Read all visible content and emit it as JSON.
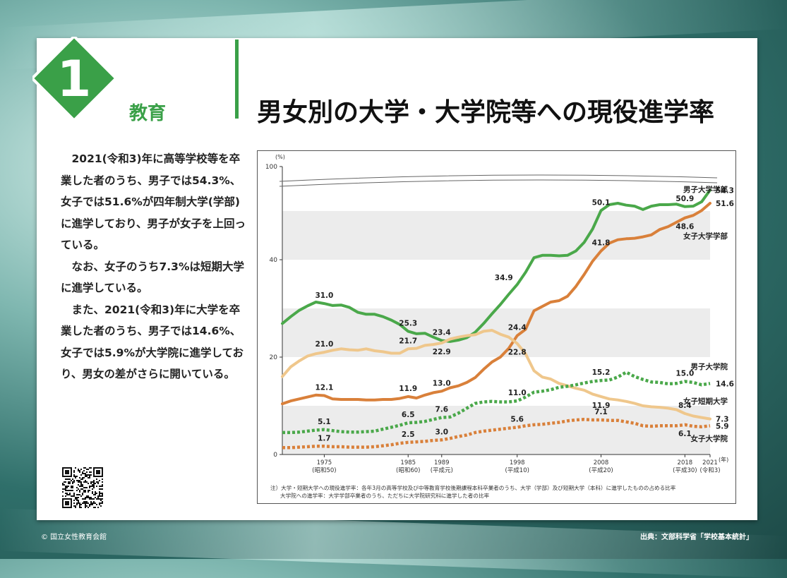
{
  "header": {
    "section_number": "1",
    "section_label": "教育",
    "title": "男女別の大学・大学院等への現役進学率"
  },
  "body": {
    "paragraphs": [
      "2021(令和3)年に高等学校等を卒業した者のうち、男子では54.3%、女子では51.6%が四年制大学(学部)に進学しており、男子が女子を上回っている。",
      "なお、女子のうち7.3%は短期大学に進学している。",
      "また、2021(令和3)年に大学を卒業した者のうち、男子では14.6%、女子では5.9%が大学院に進学しており、男女の差がさらに開いている。"
    ]
  },
  "footer": {
    "copyright": "© 国立女性教育会館",
    "source": "出典：文部科学省「学校基本統計」"
  },
  "notes": {
    "line1": "注）大学・短期大学への現役進学率：各年3月の高等学校及び中等教育学校後期課程本科卒業者のうち、大学（学部）及び短期大学（本科）に進学したものの占める比率",
    "line2": "大学院への進学率：大学学部卒業者のうち、ただちに大学院研究科に進学した者の比率"
  },
  "colors": {
    "green": "#4aa84a",
    "orange": "#d9803a",
    "tan": "#efc78c",
    "accent": "#3aa048"
  },
  "chart_data": {
    "type": "line",
    "title": "男女別の大学・大学院等への現役進学率",
    "ylabel": "(%)",
    "xlabel": "(年)",
    "ylim": [
      0,
      100
    ],
    "axis_break": [
      55,
      100
    ],
    "xlim": [
      1970,
      2021
    ],
    "y_ticks": [
      {
        "v": 0,
        "label": "0"
      },
      {
        "v": 20,
        "label": "20"
      },
      {
        "v": 40,
        "label": "40"
      },
      {
        "v": 100,
        "label": "100"
      }
    ],
    "x_ticks": [
      {
        "year": 1975,
        "label": "1975",
        "sub": "(昭和50)"
      },
      {
        "year": 1985,
        "label": "1985",
        "sub": "(昭和60)"
      },
      {
        "year": 1989,
        "label": "1989",
        "sub": "(平成元)"
      },
      {
        "year": 1998,
        "label": "1998",
        "sub": "(平成10)"
      },
      {
        "year": 2008,
        "label": "2008",
        "sub": "(平成20)"
      },
      {
        "year": 2018,
        "label": "2018",
        "sub": "(平成30)"
      },
      {
        "year": 2021,
        "label": "2021",
        "sub": "(令和3)"
      }
    ],
    "series": [
      {
        "name": "男子大学学部",
        "style": "solid",
        "color": "#4aa84a",
        "x": [
          1970,
          1971,
          1972,
          1973,
          1974,
          1975,
          1976,
          1977,
          1978,
          1979,
          1980,
          1981,
          1982,
          1983,
          1984,
          1985,
          1986,
          1987,
          1988,
          1989,
          1990,
          1991,
          1992,
          1993,
          1994,
          1995,
          1996,
          1997,
          1998,
          1999,
          2000,
          2001,
          2002,
          2003,
          2004,
          2005,
          2006,
          2007,
          2008,
          2009,
          2010,
          2011,
          2012,
          2013,
          2014,
          2015,
          2016,
          2017,
          2018,
          2019,
          2020,
          2021
        ],
        "values": [
          26.9,
          28.3,
          29.6,
          30.5,
          31.3,
          31.0,
          30.6,
          30.7,
          30.2,
          29.2,
          28.8,
          28.8,
          28.3,
          27.6,
          26.7,
          25.3,
          24.8,
          24.9,
          24.1,
          23.4,
          23.2,
          23.5,
          24.0,
          25.1,
          26.9,
          28.9,
          30.8,
          32.9,
          34.9,
          37.4,
          40.4,
          40.9,
          40.9,
          40.8,
          40.9,
          41.8,
          43.6,
          46.3,
          50.1,
          51.3,
          51.6,
          51.2,
          51.0,
          50.3,
          51.0,
          51.3,
          51.3,
          51.4,
          50.9,
          51.0,
          51.9,
          54.3
        ],
        "labels": [
          {
            "x": 1975,
            "v": 31.0,
            "text": "31.0",
            "pos": "above"
          },
          {
            "x": 1985,
            "v": 25.3,
            "text": "25.3",
            "pos": "above"
          },
          {
            "x": 1989,
            "v": 23.4,
            "text": "23.4",
            "pos": "above"
          },
          {
            "x": 1998,
            "v": 34.9,
            "text": "34.9",
            "pos": "left"
          },
          {
            "x": 2008,
            "v": 50.1,
            "text": "50.1",
            "pos": "above"
          },
          {
            "x": 2018,
            "v": 50.9,
            "text": "50.9",
            "pos": "above"
          },
          {
            "x": 2021,
            "v": 54.3,
            "text": "54.3",
            "pos": "right"
          }
        ],
        "legend": "男子大学学部"
      },
      {
        "name": "女子大学学部",
        "style": "solid",
        "color": "#d9803a",
        "x": [
          1970,
          1971,
          1972,
          1973,
          1974,
          1975,
          1976,
          1977,
          1978,
          1979,
          1980,
          1981,
          1982,
          1983,
          1984,
          1985,
          1986,
          1987,
          1988,
          1989,
          1990,
          1991,
          1992,
          1993,
          1994,
          1995,
          1996,
          1997,
          1998,
          1999,
          2000,
          2001,
          2002,
          2003,
          2004,
          2005,
          2006,
          2007,
          2008,
          2009,
          2010,
          2011,
          2012,
          2013,
          2014,
          2015,
          2016,
          2017,
          2018,
          2019,
          2020,
          2021
        ],
        "values": [
          10.4,
          11.0,
          11.4,
          11.8,
          12.2,
          12.1,
          11.4,
          11.3,
          11.3,
          11.3,
          11.2,
          11.2,
          11.3,
          11.3,
          11.5,
          11.9,
          11.6,
          12.2,
          12.7,
          13.0,
          13.7,
          14.1,
          14.8,
          15.8,
          17.5,
          19.0,
          20.0,
          21.8,
          24.4,
          25.7,
          29.5,
          30.4,
          31.3,
          31.6,
          32.5,
          34.5,
          37.0,
          39.7,
          41.8,
          43.4,
          44.1,
          44.3,
          44.4,
          44.7,
          45.1,
          46.2,
          46.8,
          47.7,
          48.6,
          49.1,
          50.1,
          51.6
        ],
        "labels": [
          {
            "x": 1975,
            "v": 12.1,
            "text": "12.1",
            "pos": "above"
          },
          {
            "x": 1985,
            "v": 11.9,
            "text": "11.9",
            "pos": "above"
          },
          {
            "x": 1989,
            "v": 13.0,
            "text": "13.0",
            "pos": "above"
          },
          {
            "x": 1998,
            "v": 24.4,
            "text": "24.4",
            "pos": "above"
          },
          {
            "x": 2008,
            "v": 41.8,
            "text": "41.8",
            "pos": "above"
          },
          {
            "x": 2018,
            "v": 48.6,
            "text": "48.6",
            "pos": "below"
          },
          {
            "x": 2021,
            "v": 51.6,
            "text": "51.6",
            "pos": "right"
          }
        ],
        "legend": "女子大学学部"
      },
      {
        "name": "女子短期大学",
        "style": "solid",
        "color": "#efc78c",
        "x": [
          1970,
          1971,
          1972,
          1973,
          1974,
          1975,
          1976,
          1977,
          1978,
          1979,
          1980,
          1981,
          1982,
          1983,
          1984,
          1985,
          1986,
          1987,
          1988,
          1989,
          1990,
          1991,
          1992,
          1993,
          1994,
          1995,
          1996,
          1997,
          1998,
          1999,
          2000,
          2001,
          2002,
          2003,
          2004,
          2005,
          2006,
          2007,
          2008,
          2009,
          2010,
          2011,
          2012,
          2013,
          2014,
          2015,
          2016,
          2017,
          2018,
          2019,
          2020,
          2021
        ],
        "values": [
          16.0,
          18.0,
          19.2,
          20.2,
          20.7,
          21.0,
          21.4,
          21.7,
          21.5,
          21.4,
          21.7,
          21.3,
          21.1,
          20.8,
          20.8,
          21.7,
          21.8,
          22.4,
          22.6,
          22.9,
          23.7,
          24.1,
          24.4,
          24.6,
          25.3,
          25.5,
          24.7,
          24.1,
          22.8,
          20.7,
          17.2,
          15.9,
          15.5,
          14.6,
          14.1,
          13.6,
          13.2,
          12.4,
          11.9,
          11.4,
          11.2,
          10.9,
          10.5,
          10.0,
          9.8,
          9.7,
          9.5,
          9.2,
          8.4,
          7.9,
          7.6,
          7.3
        ],
        "labels": [
          {
            "x": 1975,
            "v": 21.0,
            "text": "21.0",
            "pos": "above"
          },
          {
            "x": 1985,
            "v": 21.7,
            "text": "21.7",
            "pos": "above"
          },
          {
            "x": 1989,
            "v": 22.9,
            "text": "22.9",
            "pos": "below"
          },
          {
            "x": 1998,
            "v": 22.8,
            "text": "22.8",
            "pos": "below"
          },
          {
            "x": 2008,
            "v": 11.9,
            "text": "11.9",
            "pos": "below"
          },
          {
            "x": 2018,
            "v": 8.4,
            "text": "8.4",
            "pos": "above"
          },
          {
            "x": 2021,
            "v": 7.3,
            "text": "7.3",
            "pos": "right"
          }
        ],
        "legend": "女子短期大学"
      },
      {
        "name": "男子大学院",
        "style": "dotted",
        "color": "#4aa84a",
        "x": [
          1970,
          1971,
          1972,
          1973,
          1974,
          1975,
          1976,
          1977,
          1978,
          1979,
          1980,
          1981,
          1982,
          1983,
          1984,
          1985,
          1986,
          1987,
          1988,
          1989,
          1990,
          1991,
          1992,
          1993,
          1994,
          1995,
          1996,
          1997,
          1998,
          1999,
          2000,
          2001,
          2002,
          2003,
          2004,
          2005,
          2006,
          2007,
          2008,
          2009,
          2010,
          2011,
          2012,
          2013,
          2014,
          2015,
          2016,
          2017,
          2018,
          2019,
          2020,
          2021
        ],
        "values": [
          4.5,
          4.5,
          4.6,
          4.8,
          5.0,
          5.1,
          4.9,
          4.7,
          4.6,
          4.6,
          4.7,
          4.8,
          5.2,
          5.6,
          6.0,
          6.5,
          6.6,
          6.8,
          7.2,
          7.6,
          7.7,
          8.5,
          9.5,
          10.5,
          10.8,
          10.9,
          10.8,
          10.8,
          11.0,
          11.8,
          12.8,
          13.0,
          13.3,
          13.8,
          14.0,
          14.3,
          14.7,
          15.0,
          15.2,
          15.3,
          15.9,
          16.9,
          16.0,
          15.4,
          14.9,
          14.8,
          14.5,
          14.6,
          15.0,
          14.8,
          14.3,
          14.6
        ],
        "labels": [
          {
            "x": 1975,
            "v": 5.1,
            "text": "5.1",
            "pos": "above"
          },
          {
            "x": 1985,
            "v": 6.5,
            "text": "6.5",
            "pos": "above"
          },
          {
            "x": 1989,
            "v": 7.6,
            "text": "7.6",
            "pos": "above"
          },
          {
            "x": 1998,
            "v": 11.0,
            "text": "11.0",
            "pos": "above"
          },
          {
            "x": 2008,
            "v": 15.2,
            "text": "15.2",
            "pos": "above"
          },
          {
            "x": 2018,
            "v": 15.0,
            "text": "15.0",
            "pos": "above"
          },
          {
            "x": 2021,
            "v": 14.6,
            "text": "14.6",
            "pos": "right"
          }
        ],
        "legend": "男子大学院"
      },
      {
        "name": "女子大学院",
        "style": "dotted",
        "color": "#d9803a",
        "x": [
          1970,
          1971,
          1972,
          1973,
          1974,
          1975,
          1976,
          1977,
          1978,
          1979,
          1980,
          1981,
          1982,
          1983,
          1984,
          1985,
          1986,
          1987,
          1988,
          1989,
          1990,
          1991,
          1992,
          1993,
          1994,
          1995,
          1996,
          1997,
          1998,
          1999,
          2000,
          2001,
          2002,
          2003,
          2004,
          2005,
          2006,
          2007,
          2008,
          2009,
          2010,
          2011,
          2012,
          2013,
          2014,
          2015,
          2016,
          2017,
          2018,
          2019,
          2020,
          2021
        ],
        "values": [
          1.4,
          1.4,
          1.5,
          1.6,
          1.7,
          1.7,
          1.6,
          1.6,
          1.5,
          1.5,
          1.5,
          1.6,
          1.8,
          2.0,
          2.3,
          2.5,
          2.6,
          2.7,
          2.9,
          3.0,
          3.3,
          3.7,
          4.0,
          4.5,
          4.8,
          5.0,
          5.2,
          5.4,
          5.6,
          5.9,
          6.1,
          6.2,
          6.4,
          6.6,
          6.9,
          7.1,
          7.2,
          7.1,
          7.1,
          7.0,
          7.0,
          6.7,
          6.4,
          5.9,
          5.8,
          5.9,
          5.9,
          5.9,
          6.1,
          5.8,
          5.7,
          5.9
        ],
        "labels": [
          {
            "x": 1975,
            "v": 1.7,
            "text": "1.7",
            "pos": "above"
          },
          {
            "x": 1985,
            "v": 2.5,
            "text": "2.5",
            "pos": "above"
          },
          {
            "x": 1989,
            "v": 3.0,
            "text": "3.0",
            "pos": "above"
          },
          {
            "x": 1998,
            "v": 5.6,
            "text": "5.6",
            "pos": "above"
          },
          {
            "x": 2008,
            "v": 7.1,
            "text": "7.1",
            "pos": "above"
          },
          {
            "x": 2018,
            "v": 6.1,
            "text": "6.1",
            "pos": "below"
          },
          {
            "x": 2021,
            "v": 5.9,
            "text": "5.9",
            "pos": "right"
          }
        ],
        "legend": "女子大学院"
      }
    ]
  }
}
